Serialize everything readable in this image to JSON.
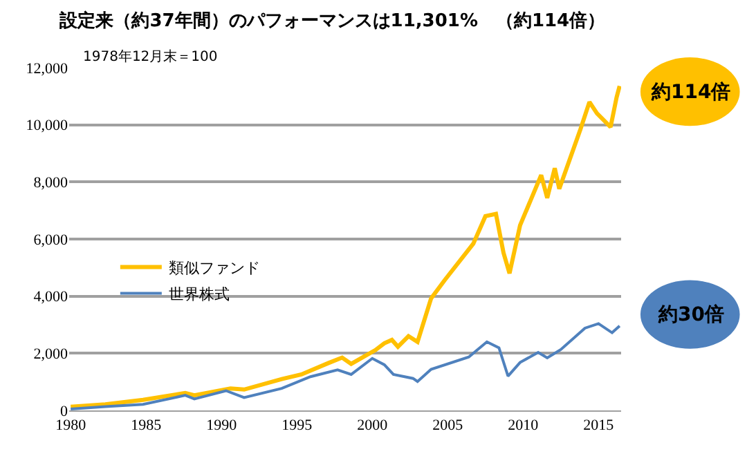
{
  "chart_data": {
    "type": "line",
    "title": "設定来（約37年間）のパフォーマンスは11,301%　（約114倍）",
    "annotations": [
      "1978年12月末＝100",
      "約114倍",
      "約30倍"
    ],
    "series": [
      {
        "name": "類似ファンド",
        "color": "#ffc000",
        "x": [
          1980.0,
          1982.3,
          1984.8,
          1987.6,
          1988.2,
          1990.6,
          1991.5,
          1994.0,
          1995.3,
          1997.1,
          1998.0,
          1998.6,
          2000.2,
          2000.8,
          2001.3,
          2001.7,
          2002.4,
          2003.0,
          2003.9,
          2004.8,
          2006.7,
          2007.5,
          2008.2,
          2008.7,
          2009.1,
          2009.8,
          2011.2,
          2011.6,
          2012.1,
          2012.4,
          2013.8,
          2014.4,
          2014.9,
          2015.8,
          2016.2,
          2016.4
        ],
        "values": [
          130,
          210,
          370,
          610,
          530,
          770,
          730,
          1100,
          1260,
          1660,
          1850,
          1630,
          2110,
          2350,
          2470,
          2230,
          2600,
          2400,
          3920,
          4560,
          5840,
          6800,
          6880,
          5520,
          4800,
          6480,
          8240,
          7440,
          8480,
          7760,
          9840,
          10800,
          10400,
          9920,
          10960,
          11360
        ]
      },
      {
        "name": "世界株式",
        "color": "#4f81bd",
        "x": [
          1980.0,
          1982.3,
          1984.8,
          1987.6,
          1988.2,
          1990.3,
          1991.5,
          1994.0,
          1995.9,
          1997.7,
          1998.6,
          2000.0,
          2000.8,
          2001.4,
          2002.7,
          2003.0,
          2003.9,
          2006.4,
          2007.6,
          2008.4,
          2009.0,
          2009.8,
          2011.0,
          2011.6,
          2012.5,
          2014.1,
          2015.0,
          2015.9,
          2016.4
        ],
        "values": [
          50,
          130,
          210,
          530,
          400,
          690,
          450,
          770,
          1180,
          1420,
          1260,
          1820,
          1600,
          1260,
          1120,
          1010,
          1440,
          1870,
          2400,
          2190,
          1200,
          1680,
          2030,
          1840,
          2130,
          2880,
          3040,
          2720,
          2960
        ]
      }
    ],
    "xlim": [
      1979.9,
      2016.5
    ],
    "xticks": [
      1980,
      1985,
      1990,
      1995,
      2000,
      2005,
      2010,
      2015
    ],
    "ylim": [
      0,
      12000
    ],
    "yticks": [
      0,
      {
        "value": 2000,
        "label": "2,000"
      },
      {
        "value": 4000,
        "label": "4,000"
      },
      {
        "value": 6000,
        "label": "6,000"
      },
      {
        "value": 8000,
        "label": "8,000"
      },
      {
        "value": 10000,
        "label": "10,000"
      },
      {
        "value": 12000,
        "label": "12,000"
      }
    ],
    "grid": "y",
    "legend": "left",
    "marker": "none",
    "line_style": "solid"
  }
}
